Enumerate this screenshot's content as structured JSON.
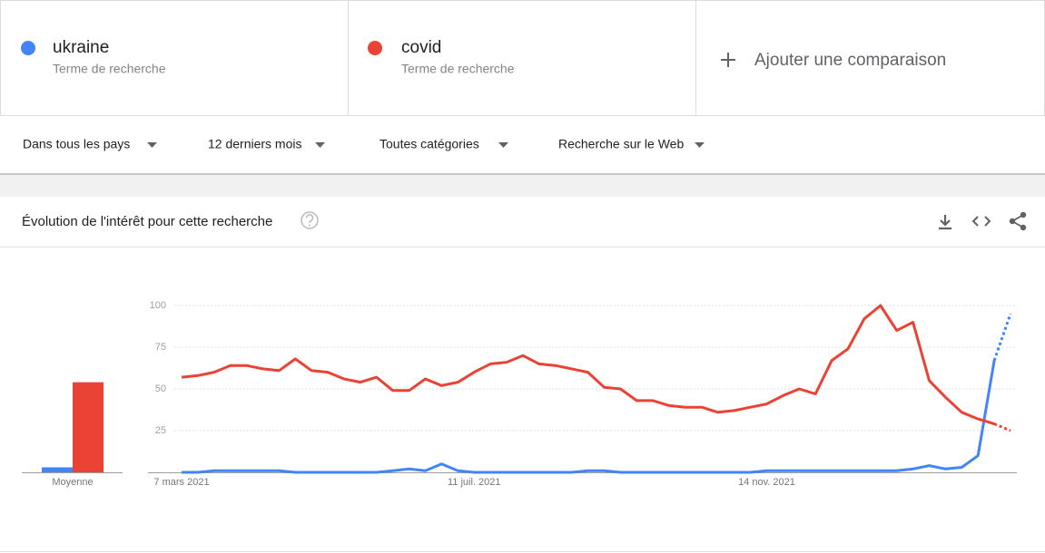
{
  "search_terms": [
    {
      "kind": "Terme de recherche"
    },
    {
      "kind": "Terme de recherche"
    }
  ],
  "add_comparison": "Ajouter une comparaison",
  "filters": [
    "Dans tous les pays",
    "12 derniers mois",
    "Toutes catégories",
    "Recherche sur le Web"
  ],
  "panel_title": "Évolution de l'intérêt pour cette recherche",
  "chart_data": {
    "type": "line",
    "categories": [
      "7 mars 2021",
      null,
      null,
      null,
      null,
      null,
      null,
      null,
      null,
      null,
      null,
      null,
      null,
      null,
      null,
      null,
      null,
      null,
      "11 juil. 2021",
      null,
      null,
      null,
      null,
      null,
      null,
      null,
      null,
      null,
      null,
      null,
      null,
      null,
      null,
      null,
      null,
      null,
      "14 nov. 2021",
      null,
      null,
      null,
      null,
      null,
      null,
      null,
      null,
      null,
      null,
      null,
      null,
      null,
      null,
      null
    ],
    "series": [
      {
        "name": "ukraine",
        "color": "#4285f4",
        "values": [
          0,
          0,
          1,
          1,
          1,
          1,
          1,
          0,
          0,
          0,
          0,
          0,
          0,
          1,
          2,
          1,
          5,
          1,
          0,
          0,
          0,
          0,
          0,
          0,
          0,
          1,
          1,
          0,
          0,
          0,
          0,
          0,
          0,
          0,
          0,
          0,
          1,
          1,
          1,
          1,
          1,
          1,
          1,
          1,
          1,
          2,
          4,
          2,
          3,
          10,
          67,
          95
        ]
      },
      {
        "name": "covid",
        "color": "#ea4335",
        "values": [
          57,
          58,
          60,
          64,
          64,
          62,
          61,
          68,
          61,
          60,
          56,
          54,
          57,
          49,
          49,
          56,
          52,
          54,
          60,
          65,
          66,
          70,
          65,
          64,
          62,
          60,
          51,
          50,
          43,
          43,
          40,
          39,
          39,
          36,
          37,
          39,
          41,
          46,
          50,
          47,
          67,
          74,
          92,
          100,
          85,
          90,
          55,
          45,
          36,
          32,
          29,
          25
        ]
      }
    ],
    "ylim": [
      0,
      100
    ],
    "yticks": [
      25,
      50,
      75,
      100
    ],
    "grid": true,
    "last_point_partial": true,
    "average": {
      "label": "Moyenne",
      "values": [
        3,
        54
      ]
    }
  }
}
